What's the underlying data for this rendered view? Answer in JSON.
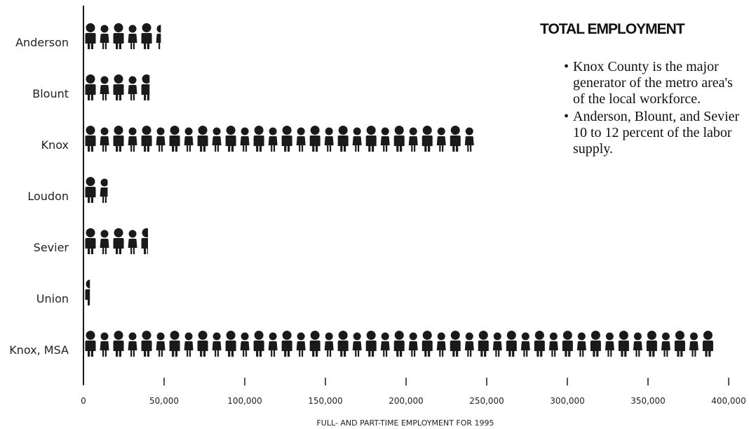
{
  "chart_data": {
    "type": "bar",
    "title": "TOTAL EMPLOYMENT",
    "categories": [
      "Anderson",
      "Blount",
      "Knox",
      "Loudon",
      "Sevier",
      "Union",
      "Knox, MSA"
    ],
    "values": [
      48000,
      41000,
      244000,
      15000,
      40000,
      4000,
      393000
    ],
    "xlabel": "FULL- AND PART-TIME EMPLOYMENT FOR 1995",
    "xlim": [
      0,
      400000
    ],
    "xticks": [
      0,
      50000,
      100000,
      150000,
      200000,
      250000,
      300000,
      350000,
      400000
    ],
    "xtick_labels": [
      "0",
      "50,000",
      "100,000",
      "150,000",
      "200,000",
      "250,000",
      "300,000",
      "350,000",
      "400,000"
    ],
    "icon_unit": 8700,
    "grid": false,
    "marker": "person-icon",
    "colors": {
      "icon": "#1a1a1a",
      "axis": "#1a1a1a"
    }
  },
  "panel": {
    "title": "TOTAL EMPLOYMENT",
    "bullets": [
      {
        "lines": [
          "Knox County is the major",
          "generator of the metro area's",
          "of the local workforce."
        ]
      },
      {
        "lines": [
          "Anderson, Blount, and Sevier",
          "10 to 12 percent of the labor",
          "supply."
        ]
      }
    ],
    "bullet_glyph": "•"
  }
}
